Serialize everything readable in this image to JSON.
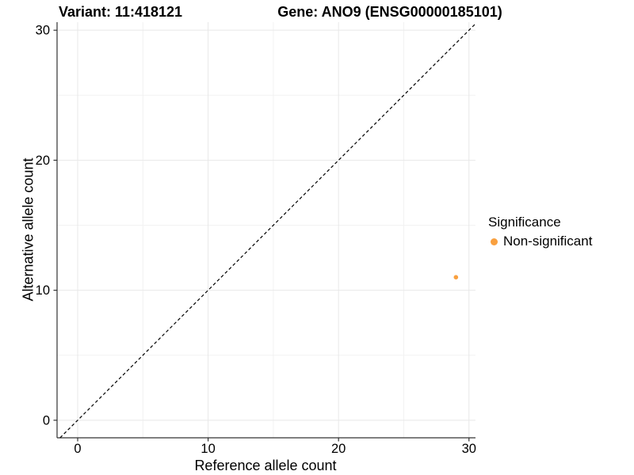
{
  "chart_data": {
    "type": "scatter",
    "titles": {
      "left": "Variant: 11:418121",
      "right": "Gene: ANO9 (ENSG00000185101)"
    },
    "xlabel": "Reference allele count",
    "ylabel": "Alternative allele count",
    "x_ticks": [
      0,
      10,
      20,
      30
    ],
    "y_ticks": [
      0,
      10,
      20,
      30
    ],
    "x_minor_ticks": [
      5,
      15,
      25
    ],
    "y_minor_ticks": [
      5,
      15,
      25
    ],
    "xlim": [
      -1.58,
      30.5
    ],
    "ylim": [
      -1.35,
      30.62
    ],
    "grid": "major and minor gridlines on",
    "identity_line": {
      "style": "dashed",
      "color": "#000000",
      "note": "y = x reference line"
    },
    "series": [
      {
        "name": "Non-significant",
        "color": "#F9A03F",
        "points": [
          {
            "x": 29,
            "y": 11
          }
        ]
      }
    ],
    "legend": {
      "title": "Significance",
      "position": "right",
      "items": [
        {
          "label": "Non-significant",
          "color": "#F9A03F"
        }
      ]
    },
    "colors": {
      "grid_major": "#e8e8e8",
      "grid_minor": "#f2f2f2",
      "axis": "#333333",
      "text": "#000000",
      "background": "#ffffff"
    }
  }
}
